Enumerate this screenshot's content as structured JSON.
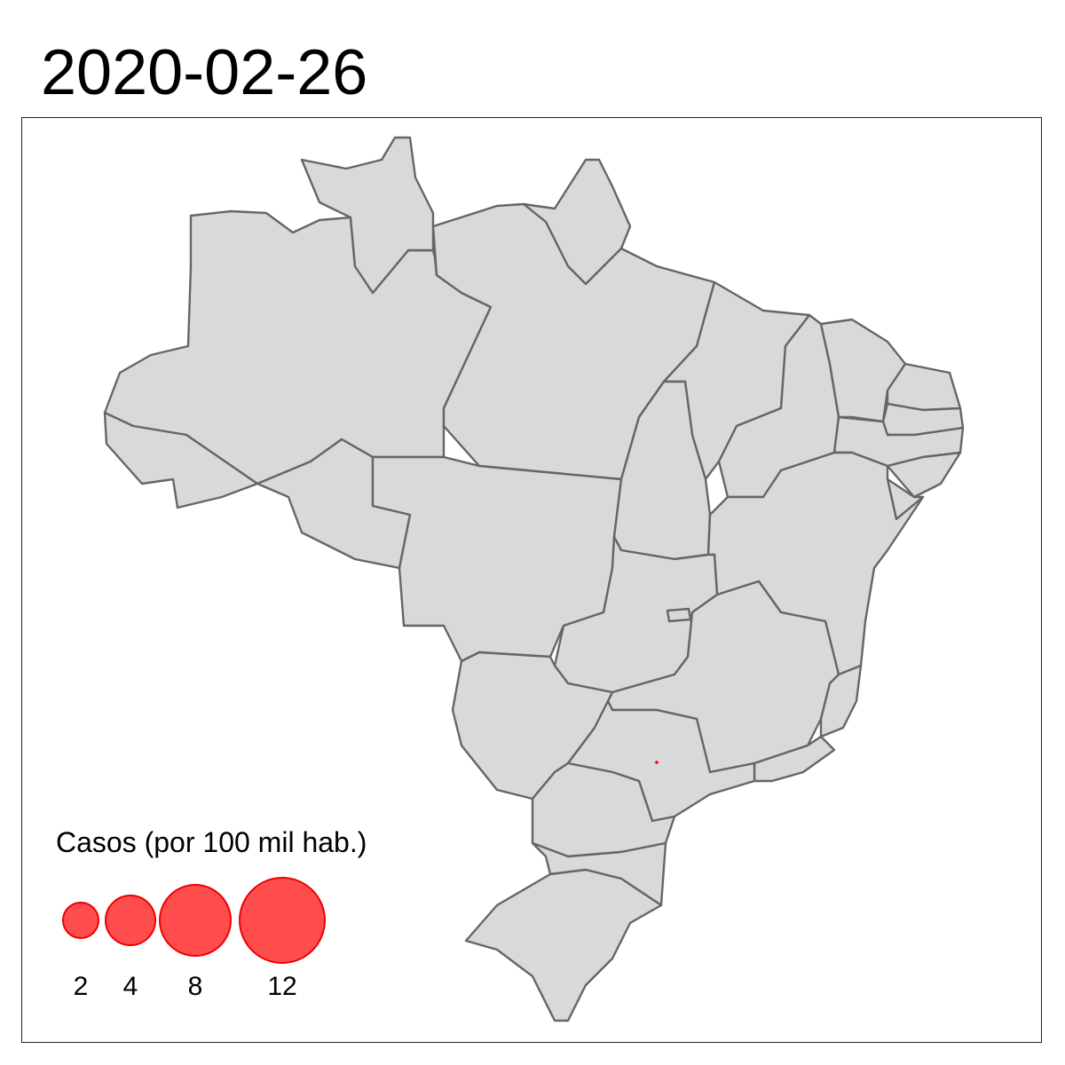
{
  "title": "2020-02-26",
  "colors": {
    "land": "#d9d9d9",
    "border": "#666666",
    "bubble_fill": "#ff4d4d",
    "bubble_stroke": "#ee0000"
  },
  "legend": {
    "title": "Casos (por 100 mil hab.)",
    "items": [
      {
        "label": "2",
        "value": 2
      },
      {
        "label": "4",
        "value": 4
      },
      {
        "label": "8",
        "value": 8
      },
      {
        "label": "12",
        "value": 12
      }
    ]
  },
  "markers": [
    {
      "state": "SP",
      "value": 0.002
    }
  ]
}
